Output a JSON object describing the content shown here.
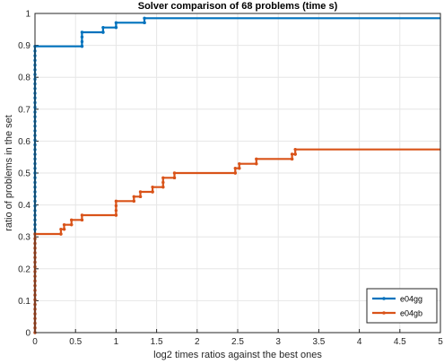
{
  "chart_data": {
    "type": "line",
    "step": true,
    "title": "Solver comparison of 68 problems (time s)",
    "xlabel": "log2 times ratios against the best ones",
    "ylabel": "ratio of problems in the set",
    "xlim": [
      0,
      5
    ],
    "ylim": [
      0,
      1
    ],
    "xticks": [
      "0",
      "0.5",
      "1",
      "1.5",
      "2",
      "2.5",
      "3",
      "3.5",
      "4",
      "4.5",
      "5"
    ],
    "yticks": [
      "0",
      "0.1",
      "0.2",
      "0.3",
      "0.4",
      "0.5",
      "0.6",
      "0.7",
      "0.8",
      "0.9",
      "1"
    ],
    "grid": true,
    "legend_location": "bottom-right",
    "series": [
      {
        "name": "e04gg",
        "color": "#0072BD",
        "x": [
          0,
          0,
          0.58,
          0.58,
          0.84,
          0.84,
          1.0,
          1.0,
          1.35,
          1.35,
          5.0
        ],
        "y": [
          0,
          0.897,
          0.897,
          0.941,
          0.941,
          0.956,
          0.956,
          0.971,
          0.971,
          0.985,
          0.985
        ]
      },
      {
        "name": "e04gb",
        "color": "#D95319",
        "x": [
          0,
          0,
          0.32,
          0.32,
          0.36,
          0.36,
          0.45,
          0.45,
          0.58,
          0.58,
          1.0,
          1.0,
          1.22,
          1.22,
          1.3,
          1.3,
          1.45,
          1.45,
          1.58,
          1.58,
          1.72,
          1.72,
          2.47,
          2.47,
          2.52,
          2.52,
          2.73,
          2.73,
          3.17,
          3.17,
          3.21,
          3.21,
          5.0
        ],
        "y": [
          0,
          0.309,
          0.309,
          0.324,
          0.324,
          0.338,
          0.338,
          0.353,
          0.353,
          0.368,
          0.368,
          0.412,
          0.412,
          0.426,
          0.426,
          0.441,
          0.441,
          0.456,
          0.456,
          0.485,
          0.485,
          0.5,
          0.5,
          0.515,
          0.515,
          0.529,
          0.529,
          0.544,
          0.544,
          0.559,
          0.559,
          0.574,
          0.574
        ]
      }
    ]
  }
}
